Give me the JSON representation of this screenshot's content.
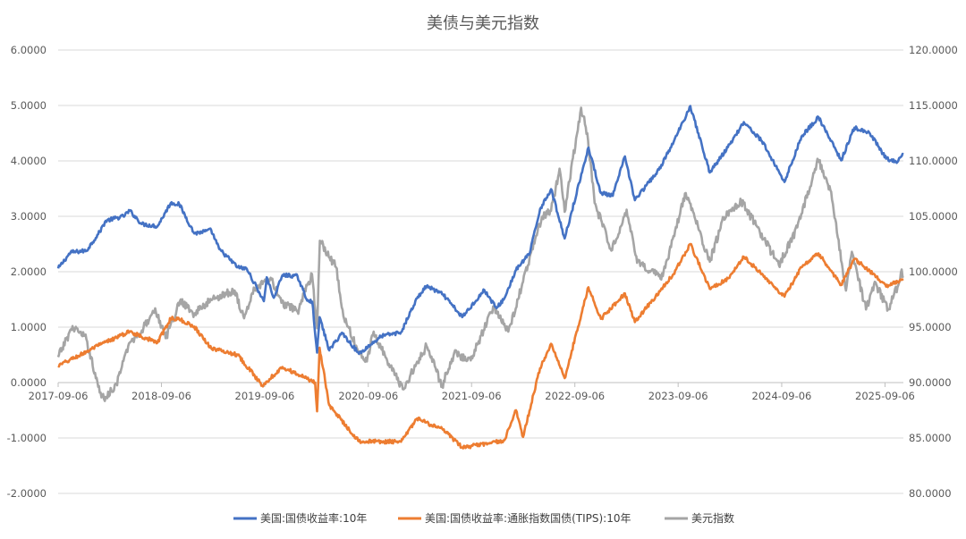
{
  "chart_data": {
    "type": "line",
    "title": "美债与美元指数",
    "xlabel": "",
    "ylabel": "",
    "x_ticks": [
      "2017-09-06",
      "2018-09-06",
      "2019-09-06",
      "2020-09-06",
      "2021-09-06",
      "2022-09-06",
      "2023-09-06",
      "2024-09-06",
      "2025-09-06"
    ],
    "x_range": [
      "2017-09-06",
      "2025-11-10"
    ],
    "y_left": {
      "ylim": [
        -2,
        6
      ],
      "ticks": [
        -2,
        -1,
        0,
        1,
        2,
        3,
        4,
        5,
        6
      ],
      "tick_labels": [
        "-2.0000",
        "-1.0000",
        "0.0000",
        "1.0000",
        "2.0000",
        "3.0000",
        "4.0000",
        "5.0000",
        "6.0000"
      ]
    },
    "y_right": {
      "ylim": [
        80,
        120
      ],
      "ticks": [
        80,
        85,
        90,
        95,
        100,
        105,
        110,
        115,
        120
      ],
      "tick_labels": [
        "80.0000",
        "85.0000",
        "90.0000",
        "95.0000",
        "100.0000",
        "105.0000",
        "110.0000",
        "115.0000",
        "120.0000"
      ]
    },
    "grid": true,
    "legend_position": "bottom",
    "series": [
      {
        "name": "美国:国债收益率:10年",
        "axis": "left",
        "color": "#4472C4",
        "points": [
          [
            "2017-09-06",
            2.06
          ],
          [
            "2017-10-20",
            2.35
          ],
          [
            "2017-12-15",
            2.38
          ],
          [
            "2018-01-31",
            2.72
          ],
          [
            "2018-02-21",
            2.92
          ],
          [
            "2018-04-24",
            3.0
          ],
          [
            "2018-05-17",
            3.1
          ],
          [
            "2018-06-29",
            2.86
          ],
          [
            "2018-08-23",
            2.82
          ],
          [
            "2018-10-09",
            3.24
          ],
          [
            "2018-11-08",
            3.22
          ],
          [
            "2018-12-31",
            2.69
          ],
          [
            "2019-03-01",
            2.75
          ],
          [
            "2019-03-29",
            2.41
          ],
          [
            "2019-06-03",
            2.08
          ],
          [
            "2019-07-05",
            2.05
          ],
          [
            "2019-09-03",
            1.47
          ],
          [
            "2019-09-13",
            1.9
          ],
          [
            "2019-10-08",
            1.53
          ],
          [
            "2019-11-08",
            1.94
          ],
          [
            "2019-12-31",
            1.92
          ],
          [
            "2020-01-31",
            1.51
          ],
          [
            "2020-02-21",
            1.46
          ],
          [
            "2020-03-09",
            0.54
          ],
          [
            "2020-03-18",
            1.18
          ],
          [
            "2020-04-21",
            0.58
          ],
          [
            "2020-06-05",
            0.9
          ],
          [
            "2020-08-04",
            0.52
          ],
          [
            "2020-10-23",
            0.84
          ],
          [
            "2020-12-31",
            0.91
          ],
          [
            "2021-02-25",
            1.52
          ],
          [
            "2021-03-31",
            1.74
          ],
          [
            "2021-05-28",
            1.59
          ],
          [
            "2021-08-04",
            1.18
          ],
          [
            "2021-10-21",
            1.67
          ],
          [
            "2021-12-03",
            1.34
          ],
          [
            "2021-12-31",
            1.52
          ],
          [
            "2022-02-10",
            2.03
          ],
          [
            "2022-03-31",
            2.34
          ],
          [
            "2022-05-06",
            3.13
          ],
          [
            "2022-06-14",
            3.49
          ],
          [
            "2022-08-01",
            2.6
          ],
          [
            "2022-10-24",
            4.24
          ],
          [
            "2022-12-07",
            3.42
          ],
          [
            "2023-01-18",
            3.37
          ],
          [
            "2023-03-02",
            4.08
          ],
          [
            "2023-04-06",
            3.29
          ],
          [
            "2023-06-30",
            3.84
          ],
          [
            "2023-08-21",
            4.34
          ],
          [
            "2023-10-19",
            4.99
          ],
          [
            "2023-12-27",
            3.79
          ],
          [
            "2024-02-29",
            4.25
          ],
          [
            "2024-04-25",
            4.7
          ],
          [
            "2024-06-28",
            4.36
          ],
          [
            "2024-09-16",
            3.62
          ],
          [
            "2024-11-15",
            4.44
          ],
          [
            "2025-01-14",
            4.79
          ],
          [
            "2025-04-04",
            4.01
          ],
          [
            "2025-05-21",
            4.6
          ],
          [
            "2025-07-15",
            4.49
          ],
          [
            "2025-09-10",
            4.04
          ],
          [
            "2025-10-20",
            3.98
          ],
          [
            "2025-11-10",
            4.12
          ]
        ]
      },
      {
        "name": "美国:国债收益率:通胀指数国债(TIPS):10年",
        "axis": "left",
        "color": "#ED7D31",
        "points": [
          [
            "2017-09-06",
            0.3
          ],
          [
            "2017-11-15",
            0.48
          ],
          [
            "2018-01-31",
            0.68
          ],
          [
            "2018-05-17",
            0.92
          ],
          [
            "2018-08-23",
            0.72
          ],
          [
            "2018-10-09",
            1.16
          ],
          [
            "2018-11-08",
            1.14
          ],
          [
            "2018-12-31",
            1.01
          ],
          [
            "2019-03-01",
            0.62
          ],
          [
            "2019-06-03",
            0.5
          ],
          [
            "2019-08-28",
            -0.05
          ],
          [
            "2019-11-08",
            0.28
          ],
          [
            "2019-12-31",
            0.15
          ],
          [
            "2020-03-02",
            0.0
          ],
          [
            "2020-03-09",
            -0.52
          ],
          [
            "2020-03-18",
            0.63
          ],
          [
            "2020-04-21",
            -0.41
          ],
          [
            "2020-08-04",
            -1.06
          ],
          [
            "2020-12-31",
            -1.07
          ],
          [
            "2021-02-25",
            -0.65
          ],
          [
            "2021-05-28",
            -0.85
          ],
          [
            "2021-08-04",
            -1.17
          ],
          [
            "2021-11-08",
            -1.1
          ],
          [
            "2021-12-31",
            -1.04
          ],
          [
            "2022-02-10",
            -0.5
          ],
          [
            "2022-03-07",
            -0.98
          ],
          [
            "2022-05-06",
            0.26
          ],
          [
            "2022-06-14",
            0.7
          ],
          [
            "2022-08-01",
            0.08
          ],
          [
            "2022-10-24",
            1.72
          ],
          [
            "2022-12-07",
            1.15
          ],
          [
            "2023-03-02",
            1.61
          ],
          [
            "2023-04-06",
            1.09
          ],
          [
            "2023-08-21",
            1.96
          ],
          [
            "2023-10-19",
            2.5
          ],
          [
            "2023-12-27",
            1.69
          ],
          [
            "2024-02-29",
            1.88
          ],
          [
            "2024-04-25",
            2.27
          ],
          [
            "2024-09-16",
            1.55
          ],
          [
            "2024-11-15",
            2.08
          ],
          [
            "2025-01-14",
            2.33
          ],
          [
            "2025-04-04",
            1.76
          ],
          [
            "2025-05-21",
            2.23
          ],
          [
            "2025-07-15",
            2.01
          ],
          [
            "2025-09-10",
            1.73
          ],
          [
            "2025-11-10",
            1.87
          ]
        ]
      },
      {
        "name": "美元指数",
        "axis": "right",
        "color": "#A5A5A5",
        "points": [
          [
            "2017-09-06",
            92.3
          ],
          [
            "2017-10-27",
            95.1
          ],
          [
            "2017-12-15",
            93.9
          ],
          [
            "2018-01-31",
            89.1
          ],
          [
            "2018-02-15",
            88.5
          ],
          [
            "2018-03-31",
            89.9
          ],
          [
            "2018-05-17",
            93.6
          ],
          [
            "2018-06-29",
            94.7
          ],
          [
            "2018-08-15",
            96.7
          ],
          [
            "2018-09-21",
            94.0
          ],
          [
            "2018-11-13",
            97.5
          ],
          [
            "2018-12-31",
            96.2
          ],
          [
            "2019-03-07",
            97.6
          ],
          [
            "2019-05-23",
            98.3
          ],
          [
            "2019-06-25",
            95.8
          ],
          [
            "2019-08-01",
            98.5
          ],
          [
            "2019-09-30",
            99.3
          ],
          [
            "2019-11-04",
            97.2
          ],
          [
            "2019-12-31",
            96.4
          ],
          [
            "2020-02-20",
            99.8
          ],
          [
            "2020-03-09",
            94.9
          ],
          [
            "2020-03-19",
            102.8
          ],
          [
            "2020-05-15",
            100.4
          ],
          [
            "2020-06-10",
            96.0
          ],
          [
            "2020-07-31",
            92.9
          ],
          [
            "2020-09-01",
            91.9
          ],
          [
            "2020-09-25",
            94.6
          ],
          [
            "2020-11-09",
            92.2
          ],
          [
            "2021-01-06",
            89.4
          ],
          [
            "2021-03-31",
            93.3
          ],
          [
            "2021-05-25",
            89.7
          ],
          [
            "2021-07-07",
            92.7
          ],
          [
            "2021-09-03",
            92.0
          ],
          [
            "2021-11-24",
            96.9
          ],
          [
            "2022-01-14",
            94.6
          ],
          [
            "2022-03-07",
            99.1
          ],
          [
            "2022-05-12",
            104.9
          ],
          [
            "2022-06-14",
            105.5
          ],
          [
            "2022-07-14",
            109.3
          ],
          [
            "2022-08-01",
            105.4
          ],
          [
            "2022-09-28",
            114.8
          ],
          [
            "2022-10-20",
            112.5
          ],
          [
            "2022-11-15",
            106.2
          ],
          [
            "2023-01-13",
            101.9
          ],
          [
            "2023-03-08",
            105.6
          ],
          [
            "2023-04-14",
            100.8
          ],
          [
            "2023-07-14",
            99.6
          ],
          [
            "2023-10-03",
            107.1
          ],
          [
            "2023-12-27",
            100.9
          ],
          [
            "2024-02-14",
            104.9
          ],
          [
            "2024-04-16",
            106.4
          ],
          [
            "2024-06-07",
            104.2
          ],
          [
            "2024-08-27",
            100.6
          ],
          [
            "2024-10-31",
            104.0
          ],
          [
            "2025-01-13",
            110.1
          ],
          [
            "2025-02-28",
            107.2
          ],
          [
            "2025-04-21",
            98.3
          ],
          [
            "2025-05-12",
            101.8
          ],
          [
            "2025-07-01",
            96.6
          ],
          [
            "2025-08-01",
            99.1
          ],
          [
            "2025-09-17",
            96.6
          ],
          [
            "2025-10-20",
            98.6
          ],
          [
            "2025-11-04",
            100.2
          ],
          [
            "2025-11-10",
            99.6
          ]
        ]
      }
    ]
  }
}
